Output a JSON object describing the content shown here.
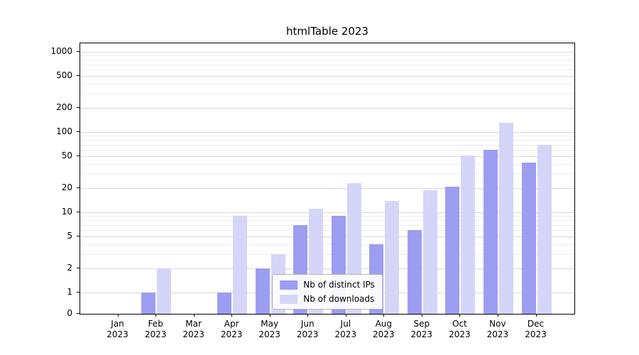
{
  "title": "htmlTable 2023",
  "chart_data": {
    "type": "bar",
    "title": "htmlTable 2023",
    "categories": [
      "Jan 2023",
      "Feb 2023",
      "Mar 2023",
      "Apr 2023",
      "May 2023",
      "Jun 2023",
      "Jul 2023",
      "Aug 2023",
      "Sep 2023",
      "Oct 2023",
      "Nov 2023",
      "Dec 2023"
    ],
    "series": [
      {
        "name": "Nb of distinct IPs",
        "color": "#9d9df1",
        "values": [
          0,
          1,
          0,
          1,
          2,
          7,
          9,
          4,
          6,
          21,
          60,
          42
        ]
      },
      {
        "name": "Nb of downloads",
        "color": "#d5d5fa",
        "values": [
          0,
          2,
          0,
          9,
          3,
          11,
          23,
          14,
          19,
          51,
          130,
          70
        ]
      }
    ],
    "xlabel": "",
    "ylabel": "",
    "yscale": "symlog",
    "yticks": [
      0,
      1,
      2,
      5,
      10,
      20,
      50,
      100,
      200,
      500,
      1000
    ],
    "ylim": [
      0,
      1300
    ],
    "grid": true,
    "legend_position": "lower center"
  },
  "colors": {
    "axis": "#000000",
    "grid_major": "#d9d9d9",
    "grid_minor": "#ededed",
    "background": "#ffffff"
  }
}
